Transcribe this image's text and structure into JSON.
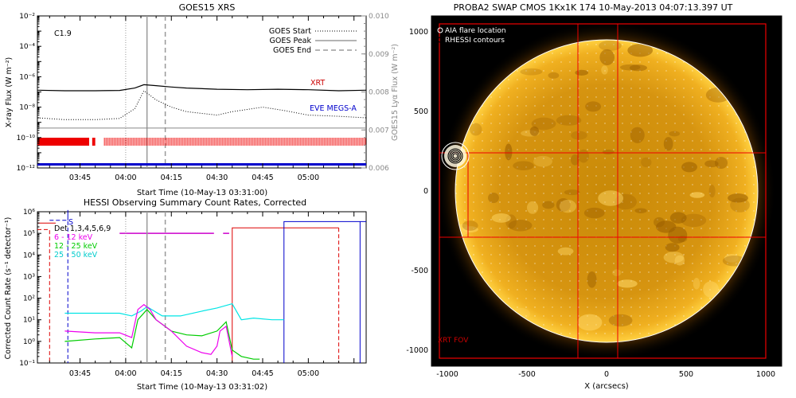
{
  "chart_data": [
    {
      "type": "line",
      "title": "GOES15 XRS",
      "xlabel": "Start Time (10-May-13 03:31:00)",
      "ylabel": "X-ray Flux (W m⁻²)",
      "y2label": "GOES15 Lyα Flux (W m⁻²)",
      "x_range": [
        "03:31",
        "05:19"
      ],
      "x_ticks": [
        "03:45",
        "04:00",
        "04:15",
        "04:30",
        "04:45",
        "05:00"
      ],
      "ylim": [
        1e-12,
        0.01
      ],
      "y_scale": "log",
      "y_ticks": [
        "10⁻¹²",
        "10⁻¹⁰",
        "10⁻⁸",
        "10⁻⁶",
        "10⁻⁴",
        "10⁻²"
      ],
      "y_tick_exps": [
        -12,
        -10,
        -8,
        -6,
        -4,
        -2
      ],
      "y2lim": [
        0.006,
        0.01
      ],
      "y2_ticks": [
        "0.006",
        "0.007",
        "0.008",
        "0.009",
        "0.010"
      ],
      "y2_tick_vals": [
        0.006,
        0.007,
        0.008,
        0.009,
        0.01
      ],
      "flare_class": "C1.9",
      "legend": [
        {
          "label": "GOES Start",
          "style": "dotted"
        },
        {
          "label": "GOES Peak",
          "style": "solid"
        },
        {
          "label": "GOES End",
          "style": "dashed"
        }
      ],
      "markers": {
        "start": "04:00",
        "peak": "04:07",
        "end": "04:13"
      },
      "annotations": [
        {
          "text": "XRT",
          "color": "#cc0000"
        },
        {
          "text": "EVE MEGS-A",
          "color": "#0000cc"
        }
      ],
      "series": [
        {
          "style": "solid",
          "color": "#000000",
          "x": [
            "03:31",
            "03:40",
            "03:50",
            "03:58",
            "04:03",
            "04:06",
            "04:10",
            "04:15",
            "04:20",
            "04:30",
            "04:40",
            "04:50",
            "05:00",
            "05:10",
            "05:19"
          ],
          "y": [
            1.3e-07,
            1.2e-07,
            1.2e-07,
            1.25e-07,
            1.8e-07,
            3e-07,
            2.6e-07,
            2.1e-07,
            1.8e-07,
            1.5e-07,
            1.4e-07,
            1.5e-07,
            1.4e-07,
            1.2e-07,
            1.3e-07
          ]
        },
        {
          "style": "dotted",
          "color": "#000000",
          "x": [
            "03:31",
            "03:40",
            "03:50",
            "03:58",
            "04:03",
            "04:06",
            "04:10",
            "04:15",
            "04:20",
            "04:30",
            "04:35",
            "04:45",
            "04:52",
            "05:00",
            "05:10",
            "05:19"
          ],
          "y": [
            2e-09,
            1.5e-09,
            1.5e-09,
            1.8e-09,
            8e-09,
            1.2e-07,
            3e-08,
            1e-08,
            5e-09,
            3e-09,
            5e-09,
            1e-08,
            6e-09,
            3e-09,
            2.5e-09,
            2e-09
          ]
        },
        {
          "style": "solid",
          "color": "#888888",
          "axis": "y2",
          "x": [
            "03:31",
            "04:00",
            "04:30",
            "05:00",
            "05:19"
          ],
          "y": [
            0.00705,
            0.00705,
            0.00705,
            0.00705,
            0.00705
          ]
        }
      ],
      "coverage_bars": [
        {
          "name": "XRT",
          "color": "#ee0000",
          "intervals": [
            [
              "03:31",
              "03:48"
            ],
            [
              "03:49",
              "03:50"
            ],
            [
              "03:53",
              "05:19"
            ]
          ]
        },
        {
          "name": "EVE MEGS-A",
          "color": "#0000cc",
          "intervals": [
            [
              "03:31",
              "05:19"
            ]
          ]
        }
      ]
    },
    {
      "type": "line",
      "title": "HESSI Observing Summary Count Rates, Corrected",
      "xlabel": "Start Time (10-May-13 03:31:02)",
      "ylabel": "Corrected Count Rate (s⁻¹ detector⁻¹)",
      "x_range": [
        "03:31",
        "05:19"
      ],
      "x_ticks": [
        "03:45",
        "04:00",
        "04:15",
        "04:30",
        "04:45",
        "05:00"
      ],
      "ylim": [
        0.1,
        1000000.0
      ],
      "y_scale": "log",
      "y_ticks": [
        "10⁻¹",
        "10⁰",
        "10¹",
        "10²",
        "10³",
        "10⁴",
        "10⁵",
        "10⁶"
      ],
      "y_tick_exps": [
        -1,
        0,
        1,
        2,
        3,
        4,
        5,
        6
      ],
      "legend_text": [
        "Det 1,3,4,5,6,9",
        "6 - 12 keV",
        "12 - 25 keV",
        "25 - 50 keV"
      ],
      "legend_colors": [
        "#000000",
        "#ee00ee",
        "#00cc00",
        "#00e5e5"
      ],
      "annotations": [
        {
          "text": "S",
          "color": "#0000cc"
        }
      ],
      "markers": {
        "start": "04:00",
        "peak": "04:07",
        "end": "04:13"
      },
      "series": [
        {
          "name": "6 - 12 keV",
          "color": "#ee00ee",
          "x": [
            "03:40",
            "03:50",
            "03:58",
            "04:02",
            "04:04",
            "04:06",
            "04:08",
            "04:10",
            "04:15",
            "04:20",
            "04:25",
            "04:28",
            "04:30",
            "04:31",
            "04:33",
            "04:35"
          ],
          "y": [
            3,
            2.5,
            2.5,
            1.5,
            30,
            50,
            30,
            10,
            3,
            0.6,
            0.3,
            0.25,
            0.6,
            3,
            5,
            0.2
          ]
        },
        {
          "name": "12 - 25 keV",
          "color": "#00cc00",
          "x": [
            "03:40",
            "03:50",
            "03:58",
            "04:02",
            "04:04",
            "04:07",
            "04:10",
            "04:15",
            "04:20",
            "04:25",
            "04:30",
            "04:33",
            "04:35",
            "04:38",
            "04:42",
            "04:44"
          ],
          "y": [
            1,
            1.3,
            1.5,
            0.5,
            10,
            30,
            10,
            3,
            2,
            1.8,
            3,
            8,
            0.4,
            0.2,
            0.15,
            0.15
          ]
        },
        {
          "name": "25 - 50 keV",
          "color": "#00e5e5",
          "x": [
            "03:40",
            "03:50",
            "03:58",
            "04:02",
            "04:05",
            "04:07",
            "04:12",
            "04:18",
            "04:25",
            "04:30",
            "04:35",
            "04:38",
            "04:42",
            "04:48",
            "04:50",
            "04:52"
          ],
          "y": [
            20,
            20,
            20,
            15,
            25,
            40,
            15,
            15,
            25,
            35,
            55,
            10,
            12,
            10,
            10,
            10
          ]
        }
      ]
    },
    {
      "type": "heatmap",
      "title": "PROBA2 SWAP CMOS 1Kx1K 174 10-May-2013 04:07:13.397 UT",
      "xlabel": "X (arcsecs)",
      "ylabel": "",
      "xlim": [
        -1100,
        1100
      ],
      "ylim": [
        -1100,
        1100
      ],
      "x_ticks": [
        "-1000",
        "-500",
        "0",
        "500",
        "1000"
      ],
      "y_ticks": [
        "-1000",
        "-500",
        "0",
        "500",
        "1000"
      ],
      "tick_vals": [
        -1000,
        -500,
        0,
        500,
        1000
      ],
      "solar_radius": 950,
      "flare_location": [
        -950,
        220
      ],
      "legend": [
        "AIA flare location",
        "RHESSI contours"
      ],
      "fov_label": "XRT FOV",
      "fov_box": [
        -1050,
        -1050,
        1000,
        1050
      ],
      "fov_lines_x": [
        -870,
        -180,
        70
      ],
      "fov_lines_y": [
        -290,
        240
      ]
    }
  ]
}
